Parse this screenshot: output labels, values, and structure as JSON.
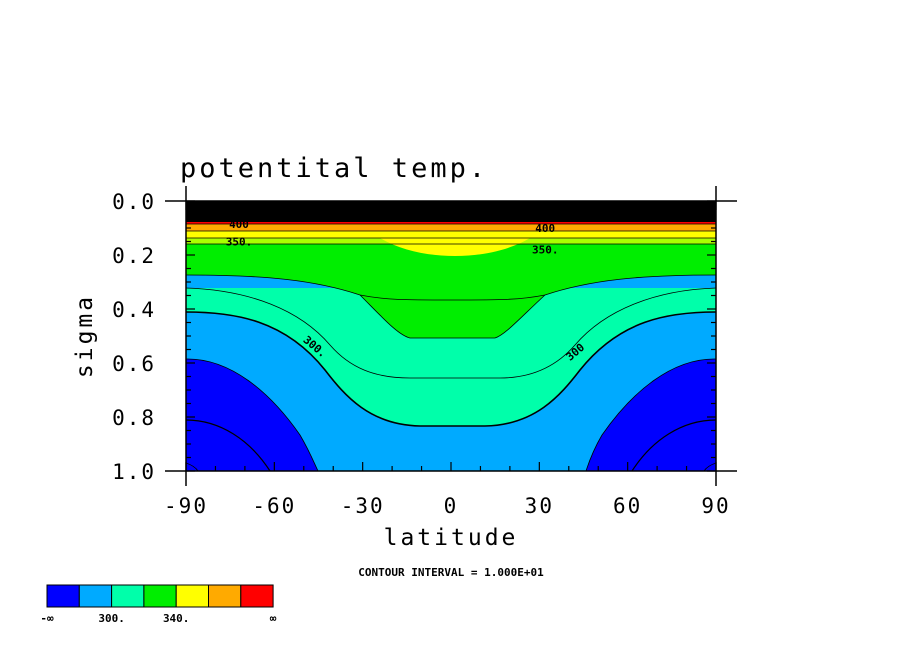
{
  "chart_data": {
    "type": "contour",
    "title": "potentital temp.",
    "xlabel": "latitude",
    "ylabel": "sigma",
    "xlim": [
      -90,
      90
    ],
    "ylim": [
      1.0,
      0.0
    ],
    "x_ticks": [
      "-90",
      "-60",
      "-30",
      "0",
      "30",
      "60",
      "90"
    ],
    "y_ticks": [
      "0.0",
      "0.2",
      "0.4",
      "0.6",
      "0.8",
      "1.0"
    ],
    "contour_note": "CONTOUR INTERVAL = 1.000E+01",
    "contour_labels": [
      {
        "text": "300.",
        "lat": -47,
        "sigma": 0.55
      },
      {
        "text": "300",
        "lat": 43,
        "sigma": 0.57
      },
      {
        "text": "350.",
        "lat": -72,
        "sigma": 0.165
      },
      {
        "text": "350.",
        "lat": 32,
        "sigma": 0.195
      },
      {
        "text": "400",
        "lat": -72,
        "sigma": 0.1
      },
      {
        "text": "400",
        "lat": 32,
        "sigma": 0.115
      }
    ],
    "colorbar": {
      "colors": [
        "#0000ff",
        "#00aaff",
        "#00ffaa",
        "#00ee00",
        "#ffff00",
        "#ffaa00",
        "#ff0000"
      ],
      "labels": [
        "-∞",
        "300.",
        "340.",
        "∞"
      ]
    },
    "colors": {
      "level_le_290": "#0000ff",
      "level_290_310": "#00aaff",
      "level_310_330": "#00ffaa",
      "level_330_350": "#00ee00",
      "level_350_370": "#ffff00",
      "level_370_390": "#ffaa00",
      "level_390_410": "#ff0000",
      "top_layers": "#000000"
    }
  }
}
